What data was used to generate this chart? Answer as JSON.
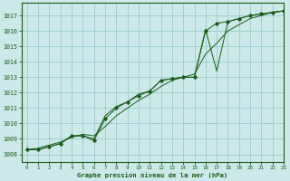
{
  "title": "Graphe pression niveau de la mer (hPa)",
  "background_color": "#cce8e8",
  "grid_color": "#99cccc",
  "line_color": "#1a5c1a",
  "marker_color": "#1a5c1a",
  "xlim": [
    -0.5,
    23
  ],
  "ylim": [
    1007.5,
    1017.8
  ],
  "yticks": [
    1008,
    1009,
    1010,
    1011,
    1012,
    1013,
    1014,
    1015,
    1016,
    1017
  ],
  "xticks": [
    0,
    1,
    2,
    3,
    4,
    5,
    6,
    7,
    8,
    9,
    10,
    11,
    12,
    13,
    14,
    15,
    16,
    17,
    18,
    19,
    20,
    21,
    22,
    23
  ],
  "series_marked_x": [
    0,
    1,
    2,
    3,
    4,
    5,
    6,
    7,
    8,
    9,
    10,
    11,
    12,
    13,
    14,
    15,
    16,
    17,
    18,
    19,
    20,
    21,
    22,
    23
  ],
  "series_marked_y": [
    1008.3,
    1008.3,
    1008.5,
    1008.7,
    1009.2,
    1009.2,
    1008.9,
    1010.3,
    1011.0,
    1011.4,
    1011.8,
    1012.1,
    1012.8,
    1012.9,
    1013.0,
    1013.0,
    1016.0,
    1016.5,
    1016.6,
    1016.8,
    1017.0,
    1017.1,
    1017.2,
    1017.3
  ],
  "series_plain_x": [
    0,
    1,
    2,
    3,
    4,
    5,
    6,
    7,
    8,
    9,
    10,
    11,
    12,
    13,
    14,
    15,
    16,
    17,
    18,
    19,
    20,
    21,
    22,
    23
  ],
  "series_plain_y": [
    1008.3,
    1008.3,
    1008.5,
    1008.7,
    1009.2,
    1009.2,
    1009.0,
    1010.5,
    1011.1,
    1011.4,
    1011.9,
    1012.1,
    1012.8,
    1012.9,
    1013.0,
    1013.0,
    1016.1,
    1013.4,
    1016.6,
    1016.8,
    1017.0,
    1017.1,
    1017.2,
    1017.3
  ],
  "series_smooth_x": [
    0,
    1,
    2,
    3,
    4,
    5,
    6,
    7,
    8,
    9,
    10,
    11,
    12,
    13,
    14,
    15,
    16,
    17,
    18,
    19,
    20,
    21,
    22,
    23
  ],
  "series_smooth_y": [
    1008.3,
    1008.4,
    1008.6,
    1008.8,
    1009.1,
    1009.3,
    1009.2,
    1009.8,
    1010.5,
    1011.0,
    1011.5,
    1011.9,
    1012.4,
    1012.8,
    1013.0,
    1013.2,
    1014.5,
    1015.2,
    1016.0,
    1016.4,
    1016.8,
    1017.0,
    1017.2,
    1017.3
  ]
}
